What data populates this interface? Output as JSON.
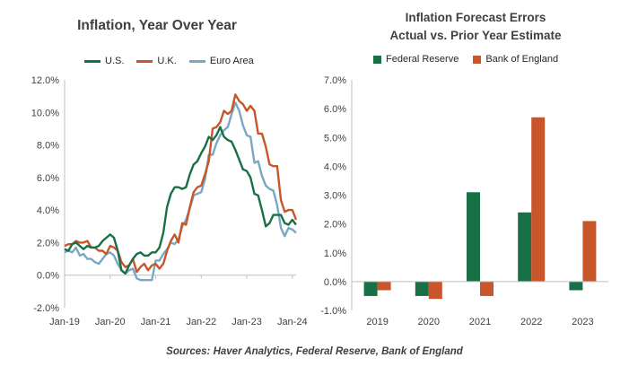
{
  "colors": {
    "us": "#1a7046",
    "uk": "#c8562a",
    "euro": "#78a8c2",
    "fed": "#1a7046",
    "boe": "#c8562a"
  },
  "source_text": "Sources: Haver Analytics, Federal Reserve, Bank of England",
  "chart_data": [
    {
      "type": "line",
      "title": "Inflation, Year Over Year",
      "xlabel": "",
      "ylabel": "",
      "x_tick_labels": [
        "Jan-19",
        "Jan-20",
        "Jan-21",
        "Jan-22",
        "Jan-23",
        "Jan-24"
      ],
      "y_tick_labels": [
        "-2.0%",
        "0.0%",
        "2.0%",
        "4.0%",
        "6.0%",
        "8.0%",
        "10.0%",
        "12.0%"
      ],
      "ylim": [
        -2,
        12
      ],
      "x_range_months": [
        0,
        61
      ],
      "grid": false,
      "legend": "top",
      "series": [
        {
          "name": "U.S.",
          "values": [
            1.6,
            1.5,
            1.9,
            2.0,
            1.8,
            1.6,
            1.8,
            1.7,
            1.7,
            1.8,
            2.1,
            2.3,
            2.5,
            2.3,
            1.5,
            0.3,
            0.1,
            0.6,
            1.0,
            1.3,
            1.4,
            1.2,
            1.2,
            1.4,
            1.4,
            1.7,
            2.6,
            4.2,
            5.0,
            5.4,
            5.4,
            5.3,
            5.4,
            6.2,
            6.8,
            7.0,
            7.5,
            7.9,
            8.5,
            8.3,
            8.6,
            9.1,
            8.5,
            8.3,
            8.2,
            7.7,
            7.1,
            6.5,
            6.4,
            6.0,
            5.0,
            4.9,
            4.0,
            3.0,
            3.2,
            3.7,
            3.7,
            3.7,
            3.2,
            3.1,
            3.4,
            3.1
          ]
        },
        {
          "name": "U.K.",
          "values": [
            1.8,
            1.9,
            1.9,
            2.1,
            2.0,
            2.0,
            2.1,
            1.7,
            1.7,
            1.5,
            1.5,
            1.3,
            1.8,
            1.7,
            1.5,
            0.8,
            0.5,
            0.6,
            1.0,
            0.2,
            0.5,
            0.7,
            0.3,
            0.6,
            0.7,
            0.4,
            0.7,
            1.5,
            2.1,
            2.5,
            2.0,
            3.2,
            3.1,
            4.2,
            5.1,
            5.4,
            5.5,
            6.2,
            7.0,
            9.0,
            9.1,
            9.4,
            10.1,
            9.9,
            10.1,
            11.1,
            10.7,
            10.5,
            10.1,
            10.4,
            10.1,
            8.7,
            8.7,
            7.9,
            6.8,
            6.7,
            6.7,
            4.6,
            3.9,
            4.0,
            4.0,
            3.4
          ]
        },
        {
          "name": "Euro Area",
          "values": [
            1.4,
            1.5,
            1.4,
            1.7,
            1.2,
            1.3,
            1.0,
            1.0,
            0.8,
            0.7,
            1.0,
            1.3,
            1.4,
            1.2,
            0.7,
            0.3,
            0.1,
            0.3,
            0.4,
            -0.2,
            -0.3,
            -0.3,
            -0.3,
            -0.3,
            0.9,
            0.9,
            1.3,
            1.6,
            2.0,
            1.9,
            2.2,
            3.0,
            3.4,
            4.1,
            4.9,
            5.0,
            5.1,
            5.9,
            7.4,
            7.4,
            8.1,
            8.6,
            8.9,
            9.1,
            9.9,
            10.6,
            10.1,
            9.2,
            8.6,
            8.5,
            6.9,
            7.0,
            6.1,
            5.5,
            5.3,
            5.2,
            4.3,
            2.9,
            2.4,
            2.9,
            2.8,
            2.6
          ]
        }
      ]
    },
    {
      "type": "bar",
      "title": "Inflation Forecast Errors",
      "subtitle": "Actual vs. Prior Year Estimate",
      "xlabel": "",
      "ylabel": "",
      "categories": [
        "2019",
        "2020",
        "2021",
        "2022",
        "2023"
      ],
      "y_tick_labels": [
        "-1.0%",
        "0.0%",
        "1.0%",
        "2.0%",
        "3.0%",
        "4.0%",
        "5.0%",
        "6.0%",
        "7.0%"
      ],
      "ylim": [
        -1,
        7
      ],
      "grid": false,
      "legend": "top",
      "series": [
        {
          "name": "Federal Reserve",
          "values": [
            -0.5,
            -0.5,
            3.1,
            2.4,
            -0.3
          ]
        },
        {
          "name": "Bank of England",
          "values": [
            -0.3,
            -0.6,
            -0.5,
            5.7,
            2.1
          ]
        }
      ]
    }
  ]
}
